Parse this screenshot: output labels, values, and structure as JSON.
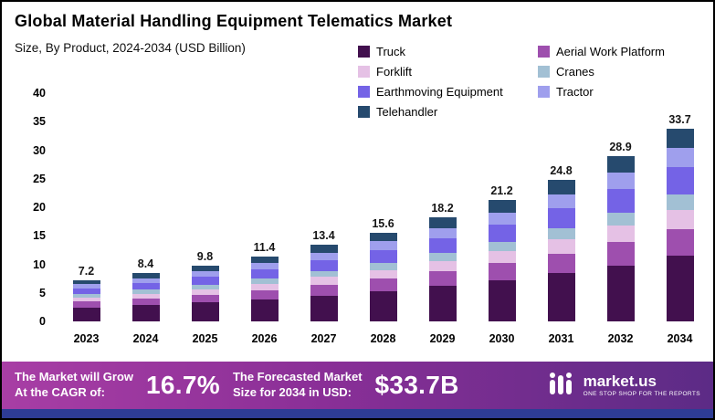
{
  "header": {
    "title": "Global Material Handling Equipment Telematics Market",
    "subtitle": "Size, By Product, 2024-2034 (USD Billion)"
  },
  "chart_data": {
    "type": "bar",
    "stacked": true,
    "title": "Global Material Handling Equipment Telematics Market",
    "subtitle": "Size, By Product, 2024-2034 (USD Billion)",
    "xlabel": "",
    "ylabel": "",
    "ylim": [
      0,
      40
    ],
    "y_ticks": [
      0,
      5,
      10,
      15,
      20,
      25,
      30,
      35,
      40
    ],
    "grid": false,
    "legend_position": "top-right",
    "categories": [
      "2023",
      "2024",
      "2025",
      "2026",
      "2027",
      "2028",
      "2029",
      "2030",
      "2031",
      "2032",
      "2034"
    ],
    "totals": [
      7.2,
      8.4,
      9.8,
      11.4,
      13.4,
      15.6,
      18.2,
      21.2,
      24.8,
      28.9,
      33.7
    ],
    "series": [
      {
        "name": "Truck",
        "color": "#42104e",
        "values": [
          2.45,
          2.86,
          3.33,
          3.88,
          4.56,
          5.3,
          6.19,
          7.21,
          8.43,
          9.83,
          11.46
        ]
      },
      {
        "name": "Aerial Work Platform",
        "color": "#9e4fae",
        "values": [
          1.01,
          1.18,
          1.37,
          1.6,
          1.88,
          2.18,
          2.55,
          2.97,
          3.47,
          4.05,
          4.72
        ]
      },
      {
        "name": "Forklift",
        "color": "#e5c1e5",
        "values": [
          0.72,
          0.84,
          0.98,
          1.14,
          1.34,
          1.56,
          1.82,
          2.12,
          2.48,
          2.89,
          3.37
        ]
      },
      {
        "name": "Cranes",
        "color": "#a2c0d4",
        "values": [
          0.58,
          0.67,
          0.78,
          0.91,
          1.07,
          1.25,
          1.46,
          1.7,
          1.98,
          2.31,
          2.7
        ]
      },
      {
        "name": "Earthmoving Equipment",
        "color": "#7463e6",
        "values": [
          1.01,
          1.18,
          1.37,
          1.6,
          1.88,
          2.18,
          2.55,
          2.97,
          3.47,
          4.05,
          4.72
        ]
      },
      {
        "name": "Tractor",
        "color": "#9f9fed",
        "values": [
          0.72,
          0.84,
          0.98,
          1.14,
          1.34,
          1.56,
          1.82,
          2.12,
          2.48,
          2.89,
          3.37
        ]
      },
      {
        "name": "Telehandler",
        "color": "#264a6e",
        "values": [
          0.72,
          0.84,
          0.98,
          1.14,
          1.34,
          1.56,
          1.82,
          2.12,
          2.48,
          2.89,
          3.37
        ]
      }
    ]
  },
  "banner": {
    "cagr_label": "The Market will Grow\nAt the CAGR of:",
    "cagr_value": "16.7%",
    "forecast_label": "The Forecasted Market\nSize for 2034 in USD:",
    "forecast_value": "$33.7B",
    "brand_name": "market.us",
    "brand_tagline": "ONE STOP SHOP FOR THE REPORTS"
  }
}
